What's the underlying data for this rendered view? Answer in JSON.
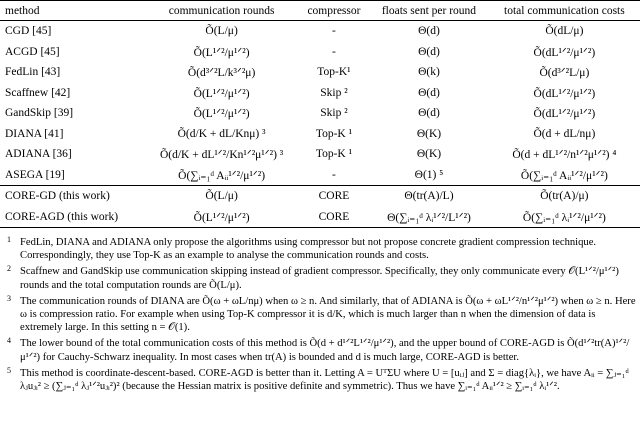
{
  "table": {
    "header": [
      "method",
      "communication rounds",
      "compressor",
      "floats sent per round",
      "total communication costs"
    ],
    "rows": [
      [
        "CGD [45]",
        "Õ(L/μ)",
        "-",
        "Θ(d)",
        "Õ(dL/μ)"
      ],
      [
        "ACGD [45]",
        "Õ(L¹ᐟ²/μ¹ᐟ²)",
        "-",
        "Θ(d)",
        "Õ(dL¹ᐟ²/μ¹ᐟ²)"
      ],
      [
        "FedLin [43]",
        "Õ(d³ᐟ²L/k³ᐟ²μ)",
        "Top-K¹",
        "Θ(k)",
        "Õ(d³ᐟ²L/μ)"
      ],
      [
        "Scaffnew [42]",
        "Õ(L¹ᐟ²/μ¹ᐟ²)",
        "Skip ²",
        "Θ(d)",
        "Õ(dL¹ᐟ²/μ¹ᐟ²)"
      ],
      [
        "GandSkip [39]",
        "Õ(L¹ᐟ²/μ¹ᐟ²)",
        "Skip ²",
        "Θ(d)",
        "Õ(dL¹ᐟ²/μ¹ᐟ²)"
      ],
      [
        "DIANA [41]",
        "Õ(d/K + dL/Knμ) ³",
        "Top-K ¹",
        "Θ(K)",
        "Õ(d + dL/nμ)"
      ],
      [
        "ADIANA [36]",
        "Õ(d/K + dL¹ᐟ²/Kn¹ᐟ²μ¹ᐟ²) ³",
        "Top-K ¹",
        "Θ(K)",
        "Õ(d + dL¹ᐟ²/n¹ᐟ²μ¹ᐟ²) ⁴"
      ],
      [
        "ASEGA [19]",
        "Õ(∑ᵢ₌₁ᵈ Aᵢᵢ¹ᐟ²/μ¹ᐟ²)",
        "-",
        "Θ(1) ⁵",
        "Õ(∑ᵢ₌₁ᵈ Aᵢᵢ¹ᐟ²/μ¹ᐟ²)"
      ],
      [
        "CORE-GD (this work)",
        "Õ(L/μ)",
        "CORE",
        "Θ(tr(A)/L)",
        "Õ(tr(A)/μ)"
      ],
      [
        "CORE-AGD (this work)",
        "Õ(L¹ᐟ²/μ¹ᐟ²)",
        "CORE",
        "Θ(∑ᵢ₌₁ᵈ λᵢ¹ᐟ²/L¹ᐟ²)",
        "Õ(∑ᵢ₌₁ᵈ λᵢ¹ᐟ²/μ¹ᐟ²)"
      ]
    ]
  },
  "footnotes": [
    {
      "marker": "1",
      "text": "FedLin, DIANA and ADIANA only propose the algorithms using compressor but not propose concrete gradient compression technique. Correspondingly, they use Top-K as an example to analyse the communication rounds and costs."
    },
    {
      "marker": "2",
      "text": "Scaffnew and GandSkip use communication skipping instead of gradient compressor. Specifically, they only communicate every 𝒪(L¹ᐟ²/μ¹ᐟ²) rounds and the total computation rounds are Õ(L/μ)."
    },
    {
      "marker": "3",
      "text": "The communication rounds of DIANA are Õ(ω + ωL/nμ) when ω ≥ n. And similarly, that of ADIANA is Õ(ω + ωL¹ᐟ²/n¹ᐟ²μ¹ᐟ²) when ω ≥ n. Here ω is compression ratio. For example when using Top-K compressor it is d/K, which is much larger than n when the dimension of data is extremely large. In this setting n = 𝒪(1)."
    },
    {
      "marker": "4",
      "text": "The lower bound of the total communication costs of this method is Õ(d + d¹ᐟ²L¹ᐟ²/μ¹ᐟ²), and the upper bound of CORE-AGD is Õ(d¹ᐟ²tr(A)¹ᐟ²/μ¹ᐟ²) for Cauchy-Schwarz inequality. In most cases when tr(A) is bounded and d is much large, CORE-AGD is better."
    },
    {
      "marker": "5",
      "text": "This method is coordinate-descent-based. CORE-AGD is better than it. Letting A = UᵀΣU where U = [uᵢⱼ] and Σ = diag{λᵢ}, we have Aᵢᵢ = ∑ⱼ₌₁ᵈ λⱼuⱼᵢ² ≥ (∑ⱼ₌₁ᵈ λⱼ¹ᐟ²uⱼᵢ²)² (because the Hessian matrix is positive definite and symmetric). Thus we have ∑ᵢ₌₁ᵈ Aᵢᵢ¹ᐟ² ≥ ∑ᵢ₌₁ᵈ λᵢ¹ᐟ²."
    }
  ]
}
